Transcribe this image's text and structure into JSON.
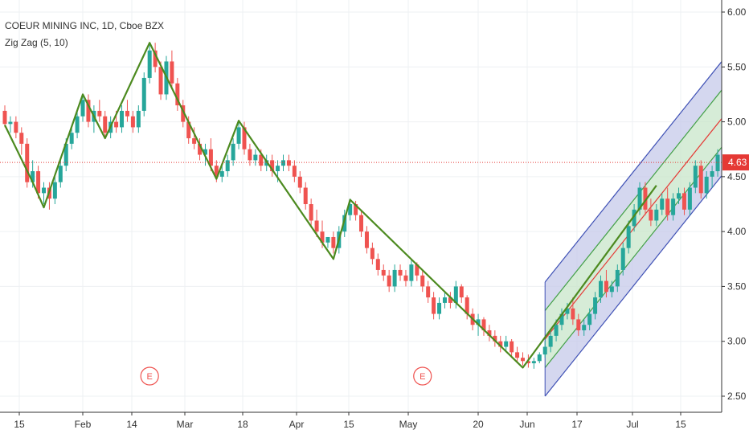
{
  "legend": {
    "title": "COEUR MINING INC, 1D, Cboe BZX",
    "indicator": "Zig Zag (5, 10)"
  },
  "last_price": "4.63",
  "earnings_marker": "E",
  "colors": {
    "up": "#26a69a",
    "down": "#ef5350",
    "zigzag": "#4c8a1f",
    "price_line": "#e53935",
    "channel_outer_fill": "#c5cae9",
    "channel_outer_stroke": "#3f51b5",
    "channel_inner_fill": "#c8e6c9",
    "channel_inner_stroke": "#43a047",
    "channel_mid": "#e53935",
    "earnings": "#ef5350"
  },
  "chart_data": {
    "type": "candlestick",
    "yaxis": {
      "ticks": [
        "2.50",
        "3.00",
        "3.50",
        "4.00",
        "4.50",
        "5.00",
        "5.50",
        "6.00"
      ],
      "ylim": [
        2.5,
        6.05
      ]
    },
    "xaxis": {
      "ticks": [
        "15",
        "Feb",
        "14",
        "Mar",
        "18",
        "Apr",
        "15",
        "May",
        "20",
        "Jun",
        "17",
        "Jul",
        "15"
      ]
    },
    "last_price": 4.63,
    "candles": [
      [
        5.1,
        5.15,
        4.95,
        4.98
      ],
      [
        4.98,
        5.05,
        4.9,
        5.0
      ],
      [
        5.0,
        5.05,
        4.85,
        4.9
      ],
      [
        4.9,
        4.95,
        4.7,
        4.8
      ],
      [
        4.8,
        4.85,
        4.4,
        4.45
      ],
      [
        4.45,
        4.65,
        4.4,
        4.55
      ],
      [
        4.55,
        4.6,
        4.3,
        4.35
      ],
      [
        4.35,
        4.45,
        4.25,
        4.4
      ],
      [
        4.4,
        4.45,
        4.2,
        4.3
      ],
      [
        4.3,
        4.5,
        4.25,
        4.45
      ],
      [
        4.45,
        4.65,
        4.4,
        4.6
      ],
      [
        4.6,
        4.85,
        4.55,
        4.8
      ],
      [
        4.8,
        4.95,
        4.75,
        4.9
      ],
      [
        4.9,
        5.1,
        4.85,
        5.05
      ],
      [
        5.05,
        5.25,
        5.0,
        5.2
      ],
      [
        5.2,
        5.25,
        4.95,
        5.0
      ],
      [
        5.0,
        5.15,
        4.9,
        5.1
      ],
      [
        5.1,
        5.2,
        5.0,
        5.05
      ],
      [
        5.05,
        5.1,
        4.85,
        4.9
      ],
      [
        4.9,
        5.05,
        4.85,
        5.0
      ],
      [
        5.0,
        5.1,
        4.9,
        4.95
      ],
      [
        4.95,
        5.15,
        4.9,
        5.1
      ],
      [
        5.1,
        5.2,
        5.0,
        5.05
      ],
      [
        5.05,
        5.1,
        4.9,
        4.95
      ],
      [
        4.95,
        5.15,
        4.9,
        5.1
      ],
      [
        5.1,
        5.45,
        5.05,
        5.4
      ],
      [
        5.4,
        5.7,
        5.35,
        5.65
      ],
      [
        5.65,
        5.72,
        5.45,
        5.5
      ],
      [
        5.5,
        5.55,
        5.2,
        5.25
      ],
      [
        5.25,
        5.6,
        5.2,
        5.55
      ],
      [
        5.55,
        5.65,
        5.3,
        5.35
      ],
      [
        5.35,
        5.4,
        5.1,
        5.15
      ],
      [
        5.15,
        5.2,
        4.95,
        5.0
      ],
      [
        5.0,
        5.05,
        4.8,
        4.85
      ],
      [
        4.85,
        4.95,
        4.75,
        4.8
      ],
      [
        4.8,
        4.85,
        4.65,
        4.7
      ],
      [
        4.7,
        4.8,
        4.6,
        4.75
      ],
      [
        4.75,
        4.85,
        4.55,
        4.6
      ],
      [
        4.6,
        4.65,
        4.45,
        4.5
      ],
      [
        4.5,
        4.6,
        4.45,
        4.55
      ],
      [
        4.55,
        4.7,
        4.5,
        4.65
      ],
      [
        4.65,
        4.85,
        4.6,
        4.8
      ],
      [
        4.8,
        5.0,
        4.75,
        4.95
      ],
      [
        4.95,
        5.0,
        4.7,
        4.75
      ],
      [
        4.75,
        4.8,
        4.6,
        4.65
      ],
      [
        4.65,
        4.75,
        4.6,
        4.7
      ],
      [
        4.7,
        4.75,
        4.55,
        4.6
      ],
      [
        4.6,
        4.7,
        4.55,
        4.65
      ],
      [
        4.65,
        4.7,
        4.5,
        4.55
      ],
      [
        4.55,
        4.65,
        4.45,
        4.6
      ],
      [
        4.6,
        4.7,
        4.55,
        4.65
      ],
      [
        4.65,
        4.7,
        4.55,
        4.6
      ],
      [
        4.6,
        4.65,
        4.45,
        4.5
      ],
      [
        4.5,
        4.55,
        4.35,
        4.4
      ],
      [
        4.4,
        4.45,
        4.2,
        4.25
      ],
      [
        4.25,
        4.3,
        4.05,
        4.1
      ],
      [
        4.1,
        4.2,
        3.95,
        4.0
      ],
      [
        4.0,
        4.1,
        3.85,
        3.9
      ],
      [
        3.9,
        3.95,
        3.85,
        3.95
      ],
      [
        3.95,
        4.0,
        3.8,
        3.85
      ],
      [
        3.85,
        4.05,
        3.8,
        4.0
      ],
      [
        4.0,
        4.2,
        3.95,
        4.15
      ],
      [
        4.15,
        4.3,
        4.1,
        4.25
      ],
      [
        4.25,
        4.28,
        4.1,
        4.15
      ],
      [
        4.15,
        4.2,
        3.95,
        4.0
      ],
      [
        4.0,
        4.05,
        3.8,
        3.85
      ],
      [
        3.85,
        3.9,
        3.7,
        3.75
      ],
      [
        3.75,
        3.8,
        3.6,
        3.65
      ],
      [
        3.65,
        3.7,
        3.55,
        3.6
      ],
      [
        3.6,
        3.65,
        3.45,
        3.5
      ],
      [
        3.5,
        3.7,
        3.45,
        3.65
      ],
      [
        3.65,
        3.7,
        3.55,
        3.6
      ],
      [
        3.6,
        3.65,
        3.5,
        3.55
      ],
      [
        3.55,
        3.75,
        3.5,
        3.7
      ],
      [
        3.7,
        3.72,
        3.55,
        3.6
      ],
      [
        3.6,
        3.65,
        3.45,
        3.5
      ],
      [
        3.5,
        3.55,
        3.35,
        3.4
      ],
      [
        3.4,
        3.45,
        3.2,
        3.25
      ],
      [
        3.25,
        3.4,
        3.2,
        3.35
      ],
      [
        3.35,
        3.45,
        3.3,
        3.4
      ],
      [
        3.4,
        3.45,
        3.3,
        3.35
      ],
      [
        3.35,
        3.55,
        3.3,
        3.5
      ],
      [
        3.5,
        3.52,
        3.35,
        3.4
      ],
      [
        3.4,
        3.42,
        3.2,
        3.25
      ],
      [
        3.25,
        3.3,
        3.1,
        3.15
      ],
      [
        3.15,
        3.25,
        3.05,
        3.2
      ],
      [
        3.2,
        3.22,
        3.05,
        3.1
      ],
      [
        3.1,
        3.15,
        3.0,
        3.05
      ],
      [
        3.05,
        3.1,
        2.95,
        3.0
      ],
      [
        3.0,
        3.05,
        2.9,
        2.95
      ],
      [
        2.95,
        3.05,
        2.9,
        3.0
      ],
      [
        3.0,
        3.02,
        2.85,
        2.9
      ],
      [
        2.9,
        2.95,
        2.8,
        2.85
      ],
      [
        2.85,
        2.9,
        2.78,
        2.82
      ],
      [
        2.82,
        2.88,
        2.76,
        2.8
      ],
      [
        2.8,
        2.85,
        2.75,
        2.82
      ],
      [
        2.82,
        2.9,
        2.8,
        2.88
      ],
      [
        2.88,
        3.0,
        2.85,
        2.95
      ],
      [
        2.95,
        3.1,
        2.9,
        3.05
      ],
      [
        3.05,
        3.2,
        3.0,
        3.15
      ],
      [
        3.15,
        3.3,
        3.1,
        3.25
      ],
      [
        3.25,
        3.35,
        3.2,
        3.3
      ],
      [
        3.3,
        3.4,
        3.15,
        3.2
      ],
      [
        3.2,
        3.25,
        3.05,
        3.1
      ],
      [
        3.1,
        3.2,
        3.05,
        3.15
      ],
      [
        3.15,
        3.3,
        3.1,
        3.25
      ],
      [
        3.25,
        3.45,
        3.2,
        3.4
      ],
      [
        3.4,
        3.6,
        3.35,
        3.55
      ],
      [
        3.55,
        3.65,
        3.4,
        3.45
      ],
      [
        3.45,
        3.55,
        3.4,
        3.5
      ],
      [
        3.5,
        3.7,
        3.45,
        3.65
      ],
      [
        3.65,
        3.9,
        3.6,
        3.85
      ],
      [
        3.85,
        4.1,
        3.8,
        4.05
      ],
      [
        4.05,
        4.25,
        4.0,
        4.2
      ],
      [
        4.2,
        4.45,
        4.15,
        4.4
      ],
      [
        4.4,
        4.45,
        4.15,
        4.2
      ],
      [
        4.2,
        4.3,
        4.05,
        4.1
      ],
      [
        4.1,
        4.25,
        4.05,
        4.2
      ],
      [
        4.2,
        4.35,
        4.15,
        4.3
      ],
      [
        4.3,
        4.4,
        4.1,
        4.15
      ],
      [
        4.15,
        4.35,
        4.1,
        4.3
      ],
      [
        4.3,
        4.4,
        4.25,
        4.35
      ],
      [
        4.35,
        4.4,
        4.15,
        4.2
      ],
      [
        4.2,
        4.45,
        4.15,
        4.4
      ],
      [
        4.4,
        4.65,
        4.35,
        4.6
      ],
      [
        4.6,
        4.65,
        4.3,
        4.35
      ],
      [
        4.35,
        4.55,
        4.3,
        4.5
      ],
      [
        4.5,
        4.6,
        4.4,
        4.55
      ],
      [
        4.55,
        4.75,
        4.5,
        4.7
      ],
      [
        4.7,
        5.05,
        4.65,
        5.0
      ],
      [
        5.0,
        5.1,
        4.55,
        4.63
      ]
    ],
    "zigzag": [
      [
        0,
        4.97
      ],
      [
        5,
        4.45
      ],
      [
        7,
        4.22
      ],
      [
        14,
        5.25
      ],
      [
        18,
        4.85
      ],
      [
        26,
        5.72
      ],
      [
        38,
        4.48
      ],
      [
        42,
        5.01
      ],
      [
        59,
        3.75
      ],
      [
        62,
        4.29
      ],
      [
        93,
        2.76
      ],
      [
        117,
        4.42
      ]
    ],
    "channel": {
      "start_index": 97,
      "end_index": 133,
      "mid_start": 3.02,
      "mid_end": 5.3,
      "inner_half_width": 0.26,
      "outer_half_width": 0.52
    },
    "earnings_markers": [
      26,
      75
    ]
  }
}
